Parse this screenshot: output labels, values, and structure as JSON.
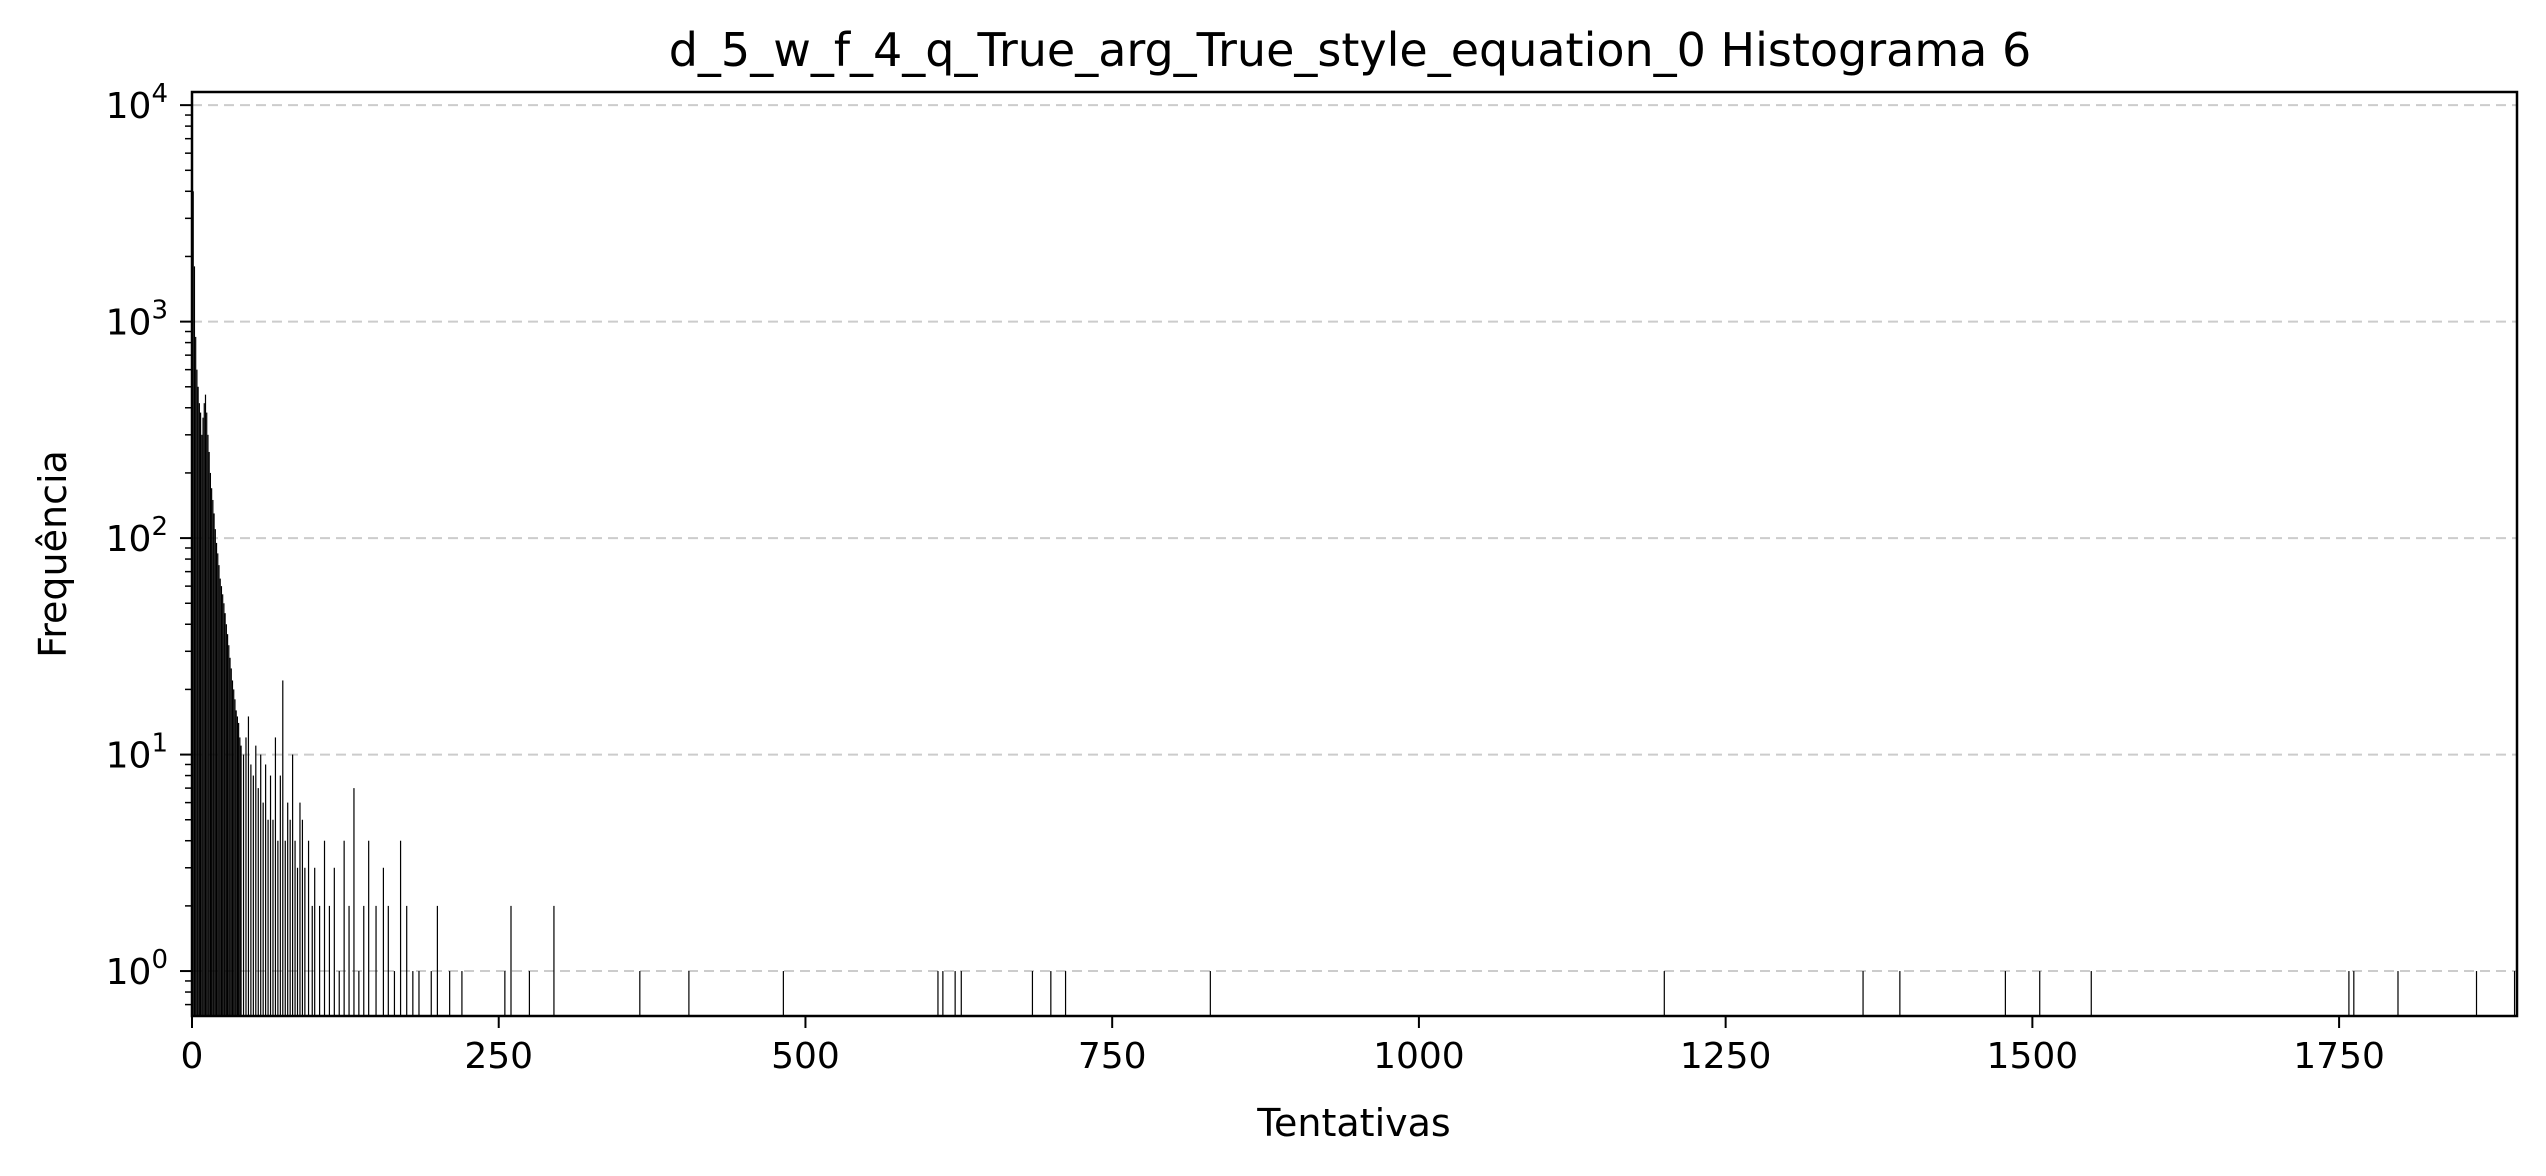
{
  "chart_data": {
    "type": "bar",
    "title": "d_5_w_f_4_q_True_arg_True_style_equation_0 Histograma 6",
    "xlabel": "Tentativas",
    "ylabel": "Frequência",
    "xlim": [
      0,
      1895
    ],
    "ylim": [
      0.62,
      11500
    ],
    "yscale": "log",
    "grid": "y-dashed",
    "bar_color": "#000000",
    "grid_color": "#cccccc",
    "x_ticks": [
      0,
      250,
      500,
      750,
      1000,
      1250,
      1500,
      1750
    ],
    "x_tick_labels": [
      "0",
      "250",
      "500",
      "750",
      "1000",
      "1250",
      "1500",
      "1750"
    ],
    "y_ticks": [
      1,
      10,
      100,
      1000,
      10000
    ],
    "y_tick_base": "10",
    "y_tick_exponents": [
      "0",
      "1",
      "2",
      "3",
      "4"
    ],
    "x": [
      1,
      2,
      3,
      4,
      5,
      6,
      7,
      8,
      9,
      10,
      11,
      12,
      13,
      14,
      15,
      16,
      17,
      18,
      19,
      20,
      21,
      22,
      23,
      24,
      25,
      26,
      27,
      28,
      29,
      30,
      31,
      32,
      33,
      34,
      35,
      36,
      37,
      38,
      39,
      40,
      42,
      44,
      46,
      48,
      50,
      52,
      54,
      56,
      58,
      60,
      62,
      64,
      66,
      68,
      70,
      72,
      74,
      76,
      78,
      80,
      82,
      84,
      86,
      88,
      90,
      92,
      95,
      98,
      100,
      104,
      108,
      112,
      116,
      120,
      124,
      128,
      132,
      136,
      140,
      144,
      150,
      156,
      160,
      165,
      170,
      175,
      180,
      185,
      195,
      200,
      210,
      220,
      255,
      260,
      275,
      295,
      365,
      405,
      482,
      608,
      612,
      622,
      627,
      685,
      700,
      712,
      830,
      1200,
      1362,
      1392,
      1478,
      1506,
      1548,
      1758,
      1762,
      1798,
      1862,
      1893
    ],
    "values": [
      4000,
      1800,
      850,
      600,
      500,
      420,
      380,
      300,
      360,
      420,
      460,
      380,
      300,
      250,
      200,
      170,
      150,
      130,
      110,
      95,
      85,
      75,
      65,
      60,
      55,
      50,
      45,
      40,
      36,
      32,
      28,
      25,
      22,
      20,
      18,
      16,
      15,
      14,
      12,
      11,
      10,
      12,
      15,
      9,
      8,
      11,
      7,
      10,
      6,
      9,
      5,
      8,
      5,
      12,
      4,
      8,
      22,
      4,
      6,
      5,
      10,
      4,
      3,
      6,
      5,
      3,
      4,
      2,
      3,
      2,
      4,
      2,
      3,
      1,
      4,
      2,
      7,
      1,
      2,
      4,
      2,
      3,
      2,
      1,
      4,
      2,
      1,
      1,
      1,
      2,
      1,
      1,
      1,
      2,
      1,
      2,
      1,
      1,
      1,
      1,
      1,
      1,
      1,
      1,
      1,
      1,
      1,
      1,
      1,
      1,
      1,
      1,
      1,
      1,
      1,
      1,
      1,
      1
    ]
  }
}
